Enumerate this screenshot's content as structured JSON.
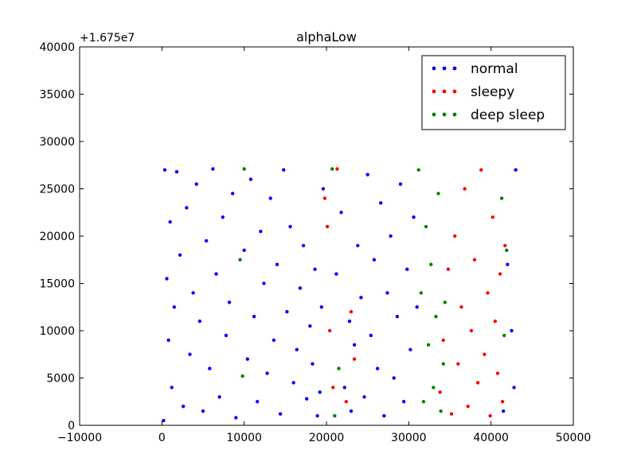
{
  "chart_data": {
    "type": "scatter",
    "title": "alphaLow",
    "xlabel": "",
    "ylabel": "",
    "y_offset_label": "+1.675e7",
    "xlim": [
      -10000,
      50000
    ],
    "ylim": [
      0,
      40000
    ],
    "x_ticks": [
      -10000,
      0,
      10000,
      20000,
      30000,
      40000,
      50000
    ],
    "y_ticks": [
      0,
      5000,
      10000,
      15000,
      20000,
      25000,
      30000,
      35000,
      40000
    ],
    "x_tick_labels": [
      "−10000",
      "0",
      "10000",
      "20000",
      "30000",
      "40000",
      "50000"
    ],
    "y_tick_labels": [
      "0",
      "5000",
      "10000",
      "15000",
      "20000",
      "25000",
      "30000",
      "35000",
      "40000"
    ],
    "grid": false,
    "legend_position": "top-right",
    "series": [
      {
        "name": "normal",
        "color": "#0000ff",
        "points": [
          [
            200,
            500
          ],
          [
            350,
            27000
          ],
          [
            600,
            15500
          ],
          [
            800,
            9000
          ],
          [
            1000,
            21500
          ],
          [
            1200,
            4000
          ],
          [
            1500,
            12500
          ],
          [
            1800,
            26800
          ],
          [
            2200,
            18000
          ],
          [
            2600,
            2000
          ],
          [
            3000,
            23000
          ],
          [
            3400,
            7500
          ],
          [
            3800,
            14000
          ],
          [
            4200,
            25500
          ],
          [
            4600,
            11000
          ],
          [
            5000,
            1500
          ],
          [
            5400,
            19500
          ],
          [
            5800,
            6000
          ],
          [
            6200,
            27100
          ],
          [
            6600,
            16000
          ],
          [
            7000,
            3000
          ],
          [
            7400,
            22000
          ],
          [
            7800,
            9500
          ],
          [
            8200,
            13000
          ],
          [
            8600,
            24500
          ],
          [
            9000,
            800
          ],
          [
            10000,
            18500
          ],
          [
            10400,
            7000
          ],
          [
            10800,
            26000
          ],
          [
            11200,
            11500
          ],
          [
            11600,
            2500
          ],
          [
            12000,
            20500
          ],
          [
            12400,
            15000
          ],
          [
            12800,
            5500
          ],
          [
            13200,
            24000
          ],
          [
            13600,
            9000
          ],
          [
            14000,
            17000
          ],
          [
            14400,
            1200
          ],
          [
            14800,
            27000
          ],
          [
            15200,
            12000
          ],
          [
            15600,
            21000
          ],
          [
            16000,
            4500
          ],
          [
            16400,
            8000
          ],
          [
            16800,
            14500
          ],
          [
            17200,
            19000
          ],
          [
            17600,
            2800
          ],
          [
            18000,
            10500
          ],
          [
            18300,
            6500
          ],
          [
            18600,
            16500
          ],
          [
            18900,
            1000
          ],
          [
            19200,
            3500
          ],
          [
            19400,
            12500
          ],
          [
            19600,
            25000
          ],
          [
            21200,
            16000
          ],
          [
            21800,
            22500
          ],
          [
            22200,
            4000
          ],
          [
            22800,
            11000
          ],
          [
            23000,
            1500
          ],
          [
            23400,
            8500
          ],
          [
            23800,
            19000
          ],
          [
            24200,
            13500
          ],
          [
            24600,
            3000
          ],
          [
            25000,
            26500
          ],
          [
            25400,
            9500
          ],
          [
            25800,
            17500
          ],
          [
            26200,
            6000
          ],
          [
            26600,
            23500
          ],
          [
            27000,
            1000
          ],
          [
            27400,
            14000
          ],
          [
            27800,
            20000
          ],
          [
            28200,
            5000
          ],
          [
            28600,
            11500
          ],
          [
            29000,
            25500
          ],
          [
            29400,
            2500
          ],
          [
            29800,
            16500
          ],
          [
            30200,
            8000
          ],
          [
            30600,
            22000
          ],
          [
            31000,
            12500
          ],
          [
            41500,
            1500
          ],
          [
            42000,
            17000
          ],
          [
            42500,
            10000
          ],
          [
            42800,
            4000
          ],
          [
            43000,
            27000
          ]
        ]
      },
      {
        "name": "sleepy",
        "color": "#ff0000",
        "points": [
          [
            19800,
            24000
          ],
          [
            20100,
            21000
          ],
          [
            20400,
            10000
          ],
          [
            20800,
            4000
          ],
          [
            21300,
            27100
          ],
          [
            22400,
            2500
          ],
          [
            23000,
            12000
          ],
          [
            23400,
            7000
          ],
          [
            33800,
            3500
          ],
          [
            34200,
            9000
          ],
          [
            34800,
            16500
          ],
          [
            35200,
            1200
          ],
          [
            35600,
            20000
          ],
          [
            36000,
            6500
          ],
          [
            36400,
            12500
          ],
          [
            36800,
            25000
          ],
          [
            37200,
            2000
          ],
          [
            37600,
            10000
          ],
          [
            38000,
            17500
          ],
          [
            38400,
            4500
          ],
          [
            38800,
            27000
          ],
          [
            39200,
            7500
          ],
          [
            39600,
            14000
          ],
          [
            39900,
            1000
          ],
          [
            40200,
            22000
          ],
          [
            40500,
            11000
          ],
          [
            40800,
            5500
          ],
          [
            41100,
            16000
          ],
          [
            41400,
            2500
          ],
          [
            41700,
            19000
          ]
        ]
      },
      {
        "name": "deep sleep",
        "color": "#008000",
        "points": [
          [
            9500,
            17500
          ],
          [
            9800,
            5200
          ],
          [
            10000,
            27100
          ],
          [
            20700,
            27100
          ],
          [
            21000,
            1000
          ],
          [
            21500,
            6000
          ],
          [
            31200,
            27000
          ],
          [
            31500,
            14000
          ],
          [
            31800,
            2500
          ],
          [
            32100,
            21000
          ],
          [
            32400,
            8500
          ],
          [
            32700,
            17000
          ],
          [
            33000,
            4000
          ],
          [
            33300,
            11500
          ],
          [
            33600,
            24500
          ],
          [
            33900,
            1500
          ],
          [
            34200,
            6500
          ],
          [
            34400,
            13000
          ],
          [
            41300,
            24000
          ],
          [
            41600,
            9500
          ],
          [
            41900,
            18500
          ]
        ]
      }
    ]
  }
}
